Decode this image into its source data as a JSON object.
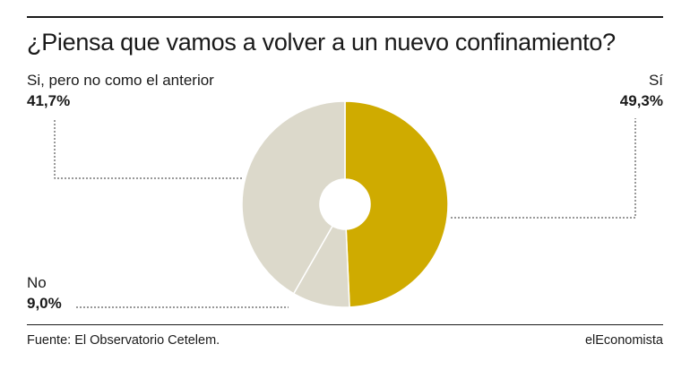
{
  "title": "¿Piensa que vamos a volver a un nuevo confinamiento?",
  "source": "Fuente: El Observatorio Cetelem.",
  "brand": "elEconomista",
  "chart_data": {
    "type": "pie",
    "donut": true,
    "slices": [
      {
        "label": "Sí",
        "value_label": "49,3%",
        "value": 49.3,
        "color": "#cfab00"
      },
      {
        "label": "No",
        "value_label": "9,0%",
        "value": 9.0,
        "color": "#dcd9cb"
      },
      {
        "label": "Si, pero no como el anterior",
        "value_label": "41,7%",
        "value": 41.7,
        "color": "#dcd9cb"
      }
    ]
  }
}
